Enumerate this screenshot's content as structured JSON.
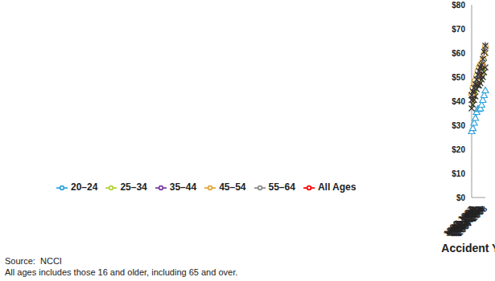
{
  "chart_data": {
    "type": "line",
    "x_label": "Accident Year",
    "notes": [
      "Source:  NCCI",
      "All ages includes those 16 and older, including 65 and over."
    ],
    "categories": [
      "1996-1997",
      "1997-1998",
      "1998-1999",
      "1999-2000",
      "2000-2001",
      "2001-2002",
      "2002-2003",
      "2003-2004",
      "2004-2005",
      "2005-2006",
      "2006-2007",
      "2007-2008"
    ],
    "series": [
      {
        "name": "All Ages",
        "color": "#ff0000",
        "marker": "none",
        "line_style": "dashed",
        "values": [
          38,
          40,
          42,
          43.5,
          46,
          47.5,
          48.5,
          50,
          51.5,
          53,
          55,
          58
        ]
      },
      {
        "name": "20–24",
        "color": "#33a3dc",
        "marker": "triangle",
        "line_style": "solid",
        "values": [
          27.5,
          28.8,
          31,
          33,
          35.5,
          36.8,
          36.8,
          37,
          38.5,
          40.5,
          42.5,
          44.5
        ]
      },
      {
        "name": "25–34",
        "color": "#b5d334",
        "marker": "x",
        "line_style": "solid",
        "values": [
          37,
          38.5,
          40.5,
          42,
          45,
          46.5,
          46.5,
          47.5,
          49,
          50,
          52,
          54
        ]
      },
      {
        "name": "35–44",
        "color": "#7b3fa0",
        "marker": "x",
        "line_style": "solid",
        "values": [
          40.5,
          42.5,
          44.5,
          46.5,
          48.5,
          50,
          51,
          52.5,
          54,
          56,
          58,
          60
        ]
      },
      {
        "name": "45–54",
        "color": "#e3a535",
        "marker": "circle",
        "line_style": "solid",
        "values": [
          43,
          45.5,
          48,
          48.5,
          50.5,
          52.5,
          54,
          55,
          55.5,
          57,
          59.5,
          62.5
        ]
      },
      {
        "name": "55–64",
        "color": "#8c8c8c",
        "marker": "star",
        "line_style": "solid",
        "values": [
          42.5,
          44,
          45.5,
          47,
          49,
          51,
          52.5,
          54,
          55,
          57.5,
          60.5,
          63
        ]
      }
    ],
    "ylim": [
      0,
      80
    ],
    "yticks": [
      {
        "value": 0,
        "label": "$0"
      },
      {
        "value": 10,
        "label": "$10"
      },
      {
        "value": 20,
        "label": "$20"
      },
      {
        "value": 30,
        "label": "$30"
      },
      {
        "value": 40,
        "label": "$40"
      },
      {
        "value": 50,
        "label": "$50"
      },
      {
        "value": 60,
        "label": "$60"
      },
      {
        "value": 70,
        "label": "$70"
      },
      {
        "value": 80,
        "label": "$80"
      }
    ],
    "grid": false,
    "legend": "lower left"
  }
}
